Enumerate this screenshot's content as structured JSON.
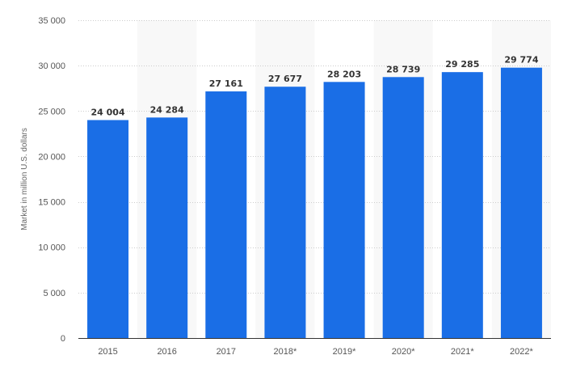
{
  "chart_data": {
    "type": "bar",
    "title": "",
    "xlabel": "",
    "ylabel": "Market in million U.S. dollars",
    "categories": [
      "2015",
      "2016",
      "2017",
      "2018*",
      "2019*",
      "2020*",
      "2021*",
      "2022*"
    ],
    "values": [
      24004,
      24284,
      27161,
      27677,
      28203,
      28739,
      29285,
      29774
    ],
    "value_labels": [
      "24 004",
      "24 284",
      "27 161",
      "27 677",
      "28 203",
      "28 739",
      "29 285",
      "29 774"
    ],
    "ylim": [
      0,
      35000
    ],
    "yticks": [
      0,
      5000,
      10000,
      15000,
      20000,
      25000,
      30000,
      35000
    ],
    "ytick_labels": [
      "0",
      "5 000",
      "10 000",
      "15 000",
      "20 000",
      "25 000",
      "30 000",
      "35 000"
    ],
    "bar_color": "#1a6ee6",
    "band_color": "#f8f8f8",
    "grid": true,
    "grid_style": "dotted",
    "legend": "none"
  }
}
